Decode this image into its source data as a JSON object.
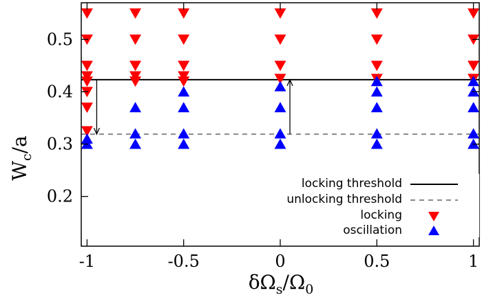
{
  "chart_data": {
    "type": "scatter",
    "xlabel": {
      "main": "δΩ",
      "sub1": "s",
      "slash": "/Ω",
      "sub2": "0"
    },
    "ylabel": {
      "main": "W",
      "sub": "c",
      "rest": "/a"
    },
    "xlim": [
      -1.03,
      1.03
    ],
    "ylim": [
      0.105,
      0.57
    ],
    "xticks": [
      -1,
      -0.5,
      0,
      0.5,
      1
    ],
    "xtick_labels": [
      "-1",
      "-0.5",
      "0",
      "0.5",
      "1"
    ],
    "yticks": [
      0.2,
      0.3,
      0.4,
      0.5
    ],
    "ytick_labels": [
      "0.2",
      "0.3",
      "0.4",
      "0.5"
    ],
    "locking_threshold": 0.423,
    "unlocking_threshold": 0.319,
    "arrows": [
      {
        "x": -0.95,
        "from": 0.423,
        "to": 0.319
      },
      {
        "x": 0.05,
        "from": 0.319,
        "to": 0.423
      }
    ],
    "series": [
      {
        "name": "locking",
        "color": "#ff0000",
        "marker": "triangle-down",
        "points": [
          [
            -1,
            0.55
          ],
          [
            -1,
            0.5
          ],
          [
            -1,
            0.45
          ],
          [
            -1,
            0.43
          ],
          [
            -1,
            0.42
          ],
          [
            -1,
            0.4
          ],
          [
            -1,
            0.37
          ],
          [
            -1,
            0.325
          ],
          [
            -0.75,
            0.55
          ],
          [
            -0.75,
            0.5
          ],
          [
            -0.75,
            0.45
          ],
          [
            -0.75,
            0.43
          ],
          [
            -0.75,
            0.42
          ],
          [
            -0.5,
            0.55
          ],
          [
            -0.5,
            0.5
          ],
          [
            -0.5,
            0.45
          ],
          [
            -0.5,
            0.43
          ],
          [
            -0.5,
            0.42
          ],
          [
            0,
            0.55
          ],
          [
            0,
            0.5
          ],
          [
            0,
            0.45
          ],
          [
            0,
            0.425
          ],
          [
            0.5,
            0.55
          ],
          [
            0.5,
            0.5
          ],
          [
            0.5,
            0.45
          ],
          [
            0.5,
            0.425
          ],
          [
            1,
            0.55
          ],
          [
            1,
            0.5
          ],
          [
            1,
            0.45
          ],
          [
            1,
            0.425
          ]
        ]
      },
      {
        "name": "oscillation",
        "color": "#0000ff",
        "marker": "triangle-up",
        "points": [
          [
            -1,
            0.31
          ],
          [
            -1,
            0.3
          ],
          [
            -0.75,
            0.37
          ],
          [
            -0.75,
            0.32
          ],
          [
            -0.75,
            0.3
          ],
          [
            -0.5,
            0.4
          ],
          [
            -0.5,
            0.37
          ],
          [
            -0.5,
            0.32
          ],
          [
            -0.5,
            0.3
          ],
          [
            0,
            0.41
          ],
          [
            0,
            0.37
          ],
          [
            0,
            0.32
          ],
          [
            0,
            0.3
          ],
          [
            0.5,
            0.42
          ],
          [
            0.5,
            0.4
          ],
          [
            0.5,
            0.37
          ],
          [
            0.5,
            0.32
          ],
          [
            0.5,
            0.3
          ],
          [
            1,
            0.42
          ],
          [
            1,
            0.4
          ],
          [
            1,
            0.37
          ],
          [
            1,
            0.32
          ],
          [
            1,
            0.3
          ]
        ]
      }
    ],
    "legend": {
      "position": "bottom-right",
      "entries": [
        {
          "label": "locking threshold",
          "style": "solid-line"
        },
        {
          "label": "unlocking threshold",
          "style": "dashed-line"
        },
        {
          "label": "locking",
          "style": "triangle-down"
        },
        {
          "label": "oscillation",
          "style": "triangle-up"
        }
      ]
    }
  }
}
